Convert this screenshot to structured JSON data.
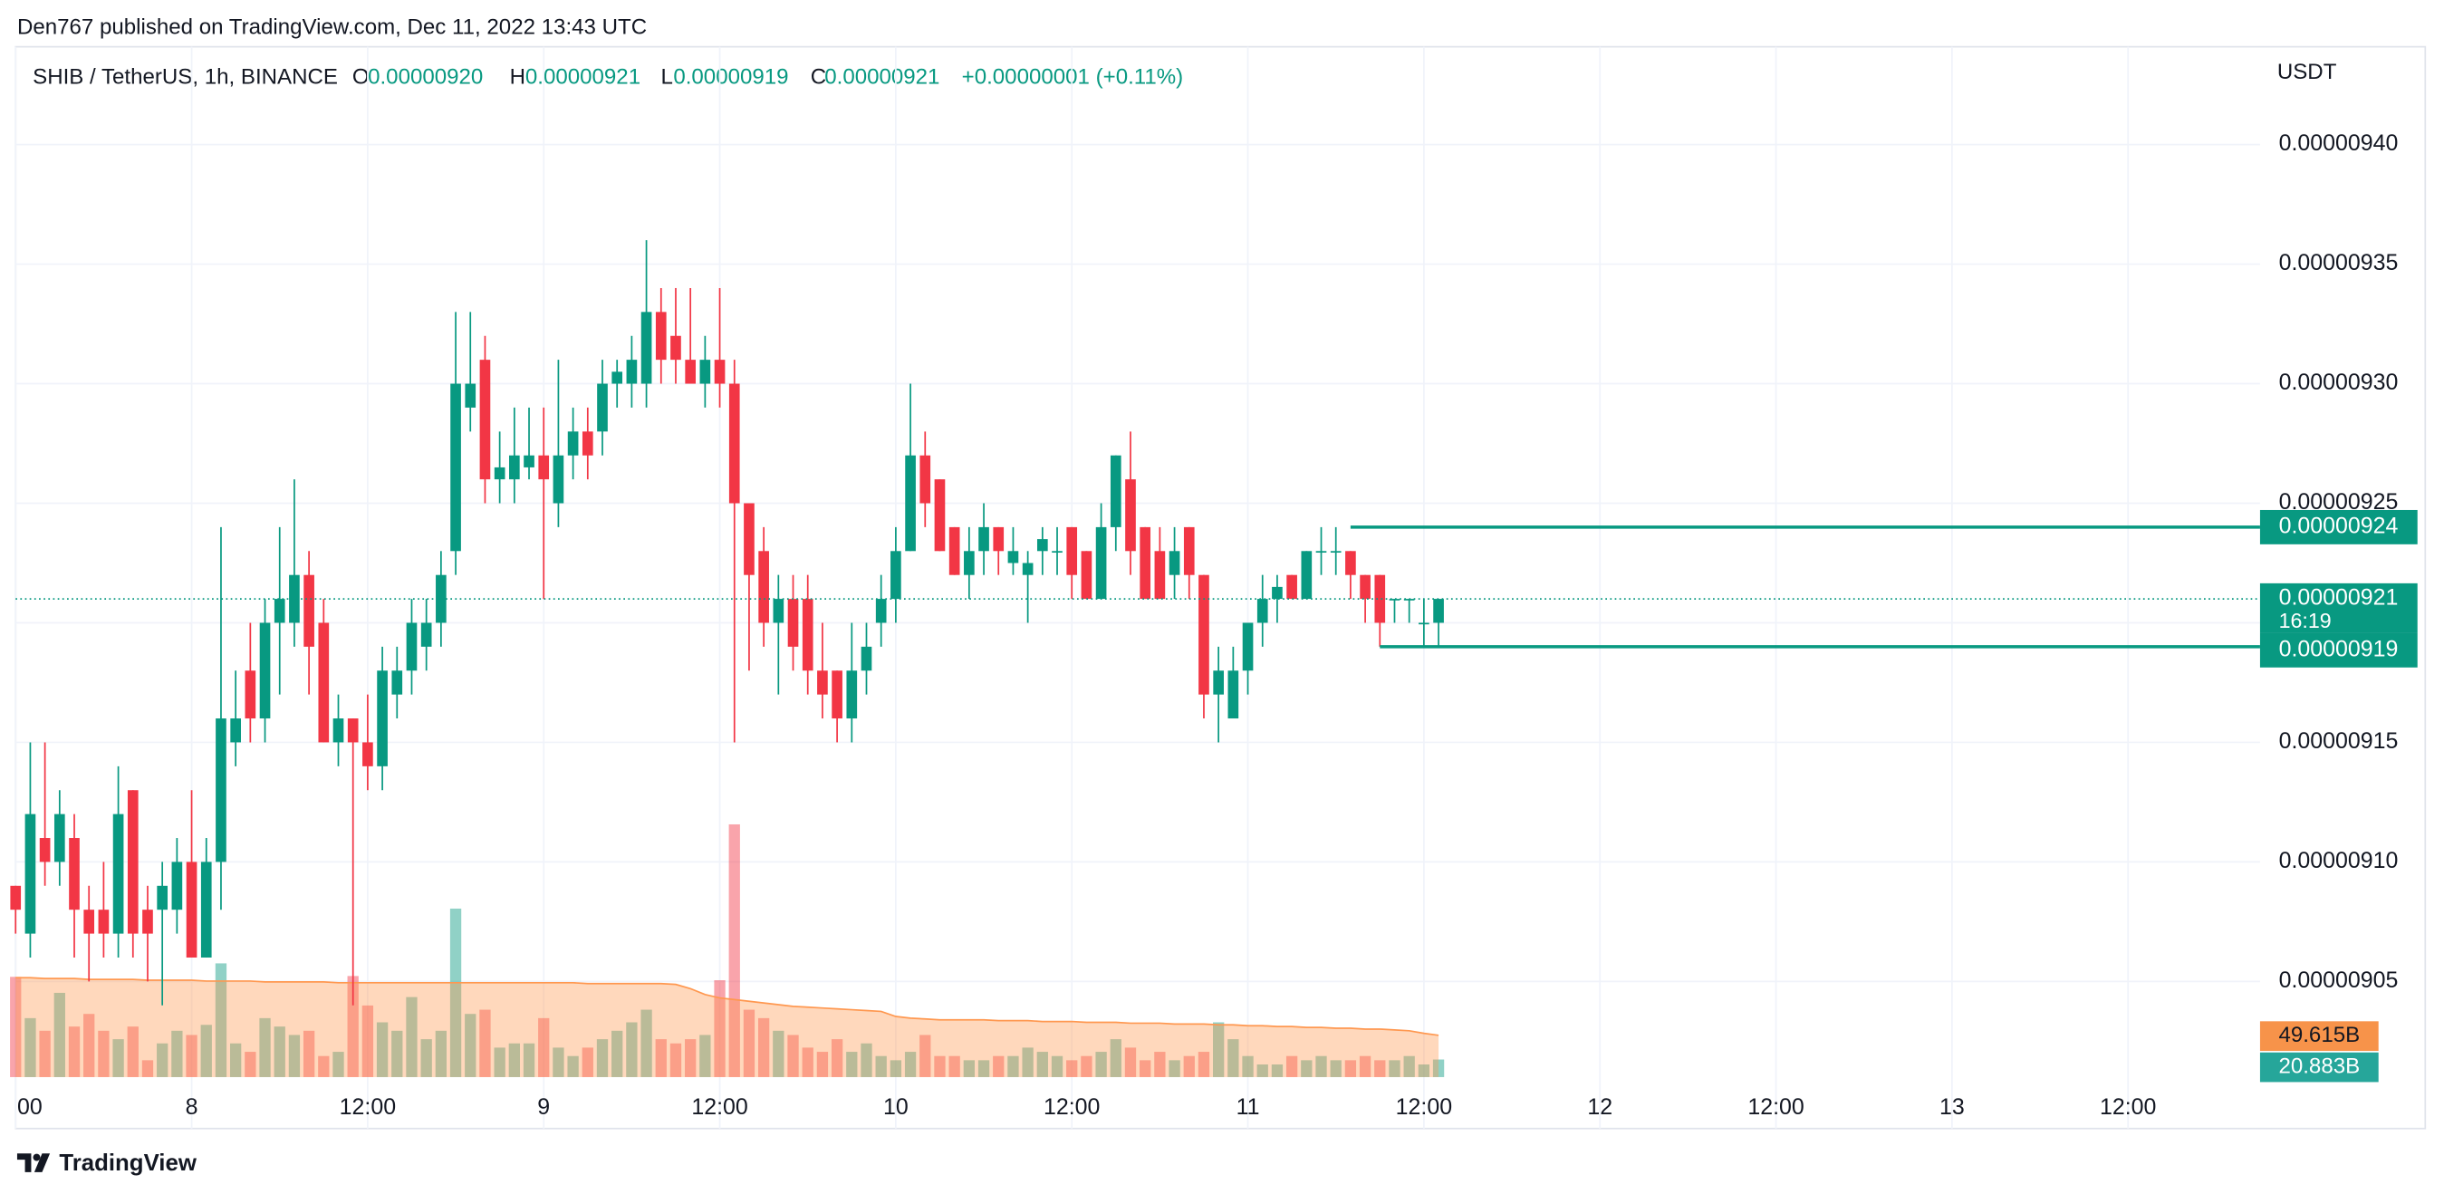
{
  "header": {
    "published": "Den767 published on TradingView.com, Dec 11, 2022 13:43 UTC",
    "brand": "TradingView"
  },
  "legend": {
    "symbol": "SHIB / TetherUS, 1h, BINANCE",
    "o": "O",
    "open": "0.00000920",
    "h": "H",
    "high": "0.00000921",
    "l": "L",
    "low": "0.00000919",
    "c": "C",
    "close": "0.00000921",
    "change": "+0.00000001 (+0.11%)"
  },
  "chart_data": {
    "type": "candlestick",
    "currency": "USDT",
    "up_color": "#089981",
    "down_color": "#f23645",
    "ma_color": "#ff9850",
    "grid": true,
    "xlim": [
      "2022-12-07 12:00",
      "2022-12-13 21:00"
    ],
    "xticks": [
      {
        "value": "2022-12-07 12:00",
        "label": "00"
      },
      {
        "value": "2022-12-08 00:00",
        "label": "8"
      },
      {
        "value": "2022-12-08 12:00",
        "label": "12:00"
      },
      {
        "value": "2022-12-09 00:00",
        "label": "9"
      },
      {
        "value": "2022-12-09 12:00",
        "label": "12:00"
      },
      {
        "value": "2022-12-10 00:00",
        "label": "10"
      },
      {
        "value": "2022-12-10 12:00",
        "label": "12:00"
      },
      {
        "value": "2022-12-11 00:00",
        "label": "11"
      },
      {
        "value": "2022-12-11 12:00",
        "label": "12:00"
      },
      {
        "value": "2022-12-12 00:00",
        "label": "12"
      },
      {
        "value": "2022-12-12 12:00",
        "label": "12:00"
      },
      {
        "value": "2022-12-13 00:00",
        "label": "13"
      },
      {
        "value": "2022-12-13 12:00",
        "label": "12:00"
      }
    ],
    "ylim": [
      9.01e-06,
      9.437e-06
    ],
    "yticks": [
      {
        "value": 9.4e-06,
        "label": "0.00000940"
      },
      {
        "value": 9.35e-06,
        "label": "0.00000935"
      },
      {
        "value": 9.3e-06,
        "label": "0.00000930"
      },
      {
        "value": 9.25e-06,
        "label": "0.00000925"
      },
      {
        "value": 9.2e-06,
        "label": "0.00000920"
      },
      {
        "value": 9.15e-06,
        "label": "0.00000915"
      },
      {
        "value": 9.1e-06,
        "label": "0.00000910"
      },
      {
        "value": 9.05e-06,
        "label": "0.00000905"
      }
    ],
    "x": [
      "2022-12-07 12:00",
      "2022-12-07 13:00",
      "2022-12-07 14:00",
      "2022-12-07 15:00",
      "2022-12-07 16:00",
      "2022-12-07 17:00",
      "2022-12-07 18:00",
      "2022-12-07 19:00",
      "2022-12-07 20:00",
      "2022-12-07 21:00",
      "2022-12-07 22:00",
      "2022-12-07 23:00",
      "2022-12-08 00:00",
      "2022-12-08 01:00",
      "2022-12-08 02:00",
      "2022-12-08 03:00",
      "2022-12-08 04:00",
      "2022-12-08 05:00",
      "2022-12-08 06:00",
      "2022-12-08 07:00",
      "2022-12-08 08:00",
      "2022-12-08 09:00",
      "2022-12-08 10:00",
      "2022-12-08 11:00",
      "2022-12-08 12:00",
      "2022-12-08 13:00",
      "2022-12-08 14:00",
      "2022-12-08 15:00",
      "2022-12-08 16:00",
      "2022-12-08 17:00",
      "2022-12-08 18:00",
      "2022-12-08 19:00",
      "2022-12-08 20:00",
      "2022-12-08 21:00",
      "2022-12-08 22:00",
      "2022-12-08 23:00",
      "2022-12-09 00:00",
      "2022-12-09 01:00",
      "2022-12-09 02:00",
      "2022-12-09 03:00",
      "2022-12-09 04:00",
      "2022-12-09 05:00",
      "2022-12-09 06:00",
      "2022-12-09 07:00",
      "2022-12-09 08:00",
      "2022-12-09 09:00",
      "2022-12-09 10:00",
      "2022-12-09 11:00",
      "2022-12-09 12:00",
      "2022-12-09 13:00",
      "2022-12-09 14:00",
      "2022-12-09 15:00",
      "2022-12-09 16:00",
      "2022-12-09 17:00",
      "2022-12-09 18:00",
      "2022-12-09 19:00",
      "2022-12-09 20:00",
      "2022-12-09 21:00",
      "2022-12-09 22:00",
      "2022-12-09 23:00",
      "2022-12-10 00:00",
      "2022-12-10 01:00",
      "2022-12-10 02:00",
      "2022-12-10 03:00",
      "2022-12-10 04:00",
      "2022-12-10 05:00",
      "2022-12-10 06:00",
      "2022-12-10 07:00",
      "2022-12-10 08:00",
      "2022-12-10 09:00",
      "2022-12-10 10:00",
      "2022-12-10 11:00",
      "2022-12-10 12:00",
      "2022-12-10 13:00",
      "2022-12-10 14:00",
      "2022-12-10 15:00",
      "2022-12-10 16:00",
      "2022-12-10 17:00",
      "2022-12-10 18:00",
      "2022-12-10 19:00",
      "2022-12-10 20:00",
      "2022-12-10 21:00",
      "2022-12-10 22:00",
      "2022-12-10 23:00",
      "2022-12-11 00:00",
      "2022-12-11 01:00",
      "2022-12-11 02:00",
      "2022-12-11 03:00",
      "2022-12-11 04:00",
      "2022-12-11 05:00",
      "2022-12-11 06:00",
      "2022-12-11 07:00",
      "2022-12-11 08:00",
      "2022-12-11 09:00",
      "2022-12-11 10:00",
      "2022-12-11 11:00",
      "2022-12-11 12:00",
      "2022-12-11 13:00"
    ],
    "open": [
      9.09e-06,
      9.07e-06,
      9.11e-06,
      9.1e-06,
      9.11e-06,
      9.08e-06,
      9.08e-06,
      9.07e-06,
      9.13e-06,
      9.08e-06,
      9.08e-06,
      9.08e-06,
      9.1e-06,
      9.06e-06,
      9.1e-06,
      9.15e-06,
      9.18e-06,
      9.16e-06,
      9.2e-06,
      9.2e-06,
      9.22e-06,
      9.2e-06,
      9.15e-06,
      9.16e-06,
      9.15e-06,
      9.14e-06,
      9.17e-06,
      9.18e-06,
      9.19e-06,
      9.2e-06,
      9.23e-06,
      9.29e-06,
      9.31e-06,
      9.26e-06,
      9.26e-06,
      9.265e-06,
      9.27e-06,
      9.25e-06,
      9.27e-06,
      9.28e-06,
      9.28e-06,
      9.3e-06,
      9.3e-06,
      9.3e-06,
      9.33e-06,
      9.32e-06,
      9.31e-06,
      9.3e-06,
      9.31e-06,
      9.3e-06,
      9.25e-06,
      9.23e-06,
      9.2e-06,
      9.21e-06,
      9.21e-06,
      9.18e-06,
      9.18e-06,
      9.16e-06,
      9.18e-06,
      9.2e-06,
      9.21e-06,
      9.23e-06,
      9.27e-06,
      9.26e-06,
      9.24e-06,
      9.22e-06,
      9.23e-06,
      9.24e-06,
      9.225e-06,
      9.22e-06,
      9.23e-06,
      9.23e-06,
      9.24e-06,
      9.23e-06,
      9.21e-06,
      9.24e-06,
      9.26e-06,
      9.24e-06,
      9.23e-06,
      9.22e-06,
      9.24e-06,
      9.22e-06,
      9.17e-06,
      9.16e-06,
      9.18e-06,
      9.2e-06,
      9.21e-06,
      9.22e-06,
      9.21e-06,
      9.23e-06,
      9.23e-06,
      9.23e-06,
      9.22e-06,
      9.22e-06,
      9.21e-06,
      9.21e-06,
      9.2e-06,
      9.2e-06
    ],
    "high": [
      9.09e-06,
      9.15e-06,
      9.15e-06,
      9.13e-06,
      9.12e-06,
      9.09e-06,
      9.1e-06,
      9.14e-06,
      9.13e-06,
      9.09e-06,
      9.1e-06,
      9.11e-06,
      9.13e-06,
      9.11e-06,
      9.24e-06,
      9.18e-06,
      9.2e-06,
      9.21e-06,
      9.24e-06,
      9.26e-06,
      9.23e-06,
      9.21e-06,
      9.17e-06,
      9.16e-06,
      9.17e-06,
      9.19e-06,
      9.19e-06,
      9.21e-06,
      9.21e-06,
      9.23e-06,
      9.33e-06,
      9.33e-06,
      9.32e-06,
      9.28e-06,
      9.29e-06,
      9.29e-06,
      9.29e-06,
      9.31e-06,
      9.29e-06,
      9.29e-06,
      9.31e-06,
      9.31e-06,
      9.32e-06,
      9.36e-06,
      9.34e-06,
      9.34e-06,
      9.34e-06,
      9.32e-06,
      9.34e-06,
      9.31e-06,
      9.25e-06,
      9.24e-06,
      9.22e-06,
      9.22e-06,
      9.22e-06,
      9.2e-06,
      9.18e-06,
      9.2e-06,
      9.2e-06,
      9.22e-06,
      9.24e-06,
      9.3e-06,
      9.28e-06,
      9.26e-06,
      9.24e-06,
      9.24e-06,
      9.25e-06,
      9.24e-06,
      9.24e-06,
      9.23e-06,
      9.24e-06,
      9.24e-06,
      9.24e-06,
      9.23e-06,
      9.25e-06,
      9.27e-06,
      9.28e-06,
      9.24e-06,
      9.24e-06,
      9.24e-06,
      9.24e-06,
      9.22e-06,
      9.19e-06,
      9.19e-06,
      9.2e-06,
      9.22e-06,
      9.22e-06,
      9.22e-06,
      9.23e-06,
      9.24e-06,
      9.24e-06,
      9.23e-06,
      9.22e-06,
      9.22e-06,
      9.21e-06,
      9.21e-06,
      9.21e-06,
      9.21e-06
    ],
    "low": [
      9.07e-06,
      9.06e-06,
      9.09e-06,
      9.09e-06,
      9.06e-06,
      9.05e-06,
      9.06e-06,
      9.06e-06,
      9.06e-06,
      9.05e-06,
      9.04e-06,
      9.07e-06,
      9.06e-06,
      9.06e-06,
      9.08e-06,
      9.14e-06,
      9.15e-06,
      9.15e-06,
      9.17e-06,
      9.19e-06,
      9.17e-06,
      9.15e-06,
      9.14e-06,
      9.04e-06,
      9.13e-06,
      9.13e-06,
      9.16e-06,
      9.17e-06,
      9.18e-06,
      9.19e-06,
      9.22e-06,
      9.28e-06,
      9.25e-06,
      9.25e-06,
      9.25e-06,
      9.26e-06,
      9.21e-06,
      9.24e-06,
      9.26e-06,
      9.26e-06,
      9.27e-06,
      9.29e-06,
      9.29e-06,
      9.29e-06,
      9.3e-06,
      9.3e-06,
      9.3e-06,
      9.29e-06,
      9.29e-06,
      9.15e-06,
      9.18e-06,
      9.19e-06,
      9.17e-06,
      9.18e-06,
      9.17e-06,
      9.16e-06,
      9.15e-06,
      9.15e-06,
      9.17e-06,
      9.19e-06,
      9.2e-06,
      9.23e-06,
      9.24e-06,
      9.23e-06,
      9.22e-06,
      9.21e-06,
      9.22e-06,
      9.22e-06,
      9.22e-06,
      9.2e-06,
      9.22e-06,
      9.22e-06,
      9.21e-06,
      9.21e-06,
      9.21e-06,
      9.23e-06,
      9.22e-06,
      9.21e-06,
      9.21e-06,
      9.21e-06,
      9.21e-06,
      9.16e-06,
      9.15e-06,
      9.16e-06,
      9.17e-06,
      9.19e-06,
      9.2e-06,
      9.21e-06,
      9.21e-06,
      9.22e-06,
      9.22e-06,
      9.21e-06,
      9.2e-06,
      9.19e-06,
      9.2e-06,
      9.2e-06,
      9.19e-06,
      9.19e-06
    ],
    "close": [
      9.08e-06,
      9.12e-06,
      9.1e-06,
      9.12e-06,
      9.08e-06,
      9.07e-06,
      9.07e-06,
      9.12e-06,
      9.07e-06,
      9.07e-06,
      9.09e-06,
      9.1e-06,
      9.06e-06,
      9.1e-06,
      9.16e-06,
      9.16e-06,
      9.16e-06,
      9.2e-06,
      9.21e-06,
      9.22e-06,
      9.19e-06,
      9.15e-06,
      9.16e-06,
      9.15e-06,
      9.14e-06,
      9.18e-06,
      9.18e-06,
      9.2e-06,
      9.2e-06,
      9.22e-06,
      9.3e-06,
      9.3e-06,
      9.26e-06,
      9.265e-06,
      9.27e-06,
      9.27e-06,
      9.26e-06,
      9.27e-06,
      9.28e-06,
      9.27e-06,
      9.3e-06,
      9.305e-06,
      9.31e-06,
      9.33e-06,
      9.31e-06,
      9.31e-06,
      9.3e-06,
      9.31e-06,
      9.3e-06,
      9.25e-06,
      9.22e-06,
      9.2e-06,
      9.21e-06,
      9.19e-06,
      9.18e-06,
      9.17e-06,
      9.16e-06,
      9.18e-06,
      9.19e-06,
      9.21e-06,
      9.23e-06,
      9.27e-06,
      9.25e-06,
      9.23e-06,
      9.22e-06,
      9.23e-06,
      9.24e-06,
      9.23e-06,
      9.23e-06,
      9.225e-06,
      9.235e-06,
      9.23e-06,
      9.22e-06,
      9.21e-06,
      9.24e-06,
      9.27e-06,
      9.23e-06,
      9.21e-06,
      9.21e-06,
      9.23e-06,
      9.22e-06,
      9.17e-06,
      9.18e-06,
      9.18e-06,
      9.2e-06,
      9.21e-06,
      9.215e-06,
      9.21e-06,
      9.23e-06,
      9.23e-06,
      9.23e-06,
      9.22e-06,
      9.21e-06,
      9.2e-06,
      9.21e-06,
      9.21e-06,
      9.2e-06,
      9.21e-06
    ],
    "volume_lim": [
      0,
      1212
    ],
    "volume": [
      119,
      70,
      55,
      100,
      60,
      75,
      55,
      45,
      60,
      20,
      40,
      55,
      50,
      62,
      135,
      40,
      30,
      70,
      60,
      50,
      55,
      25,
      30,
      120,
      85,
      65,
      55,
      95,
      45,
      55,
      200,
      75,
      80,
      35,
      40,
      40,
      70,
      35,
      25,
      35,
      45,
      55,
      65,
      80,
      45,
      40,
      45,
      50,
      115,
      300,
      80,
      70,
      55,
      50,
      35,
      30,
      45,
      30,
      40,
      25,
      20,
      30,
      50,
      25,
      25,
      20,
      20,
      25,
      25,
      35,
      30,
      25,
      20,
      25,
      30,
      45,
      35,
      20,
      30,
      20,
      25,
      30,
      65,
      45,
      25,
      15,
      15,
      25,
      20,
      25,
      20,
      20,
      25,
      20,
      20,
      25,
      15,
      20.883
    ],
    "volume_ma": [
      118,
      118,
      117,
      117,
      117,
      116,
      116,
      116,
      116,
      115,
      115,
      115,
      115,
      114,
      114,
      114,
      114,
      113,
      113,
      113,
      113,
      113,
      112,
      112,
      112,
      112,
      112,
      112,
      112,
      112,
      112,
      112,
      112,
      112,
      112,
      112,
      112,
      112,
      112,
      111,
      111,
      111,
      111,
      111,
      111,
      110,
      105,
      98,
      94,
      92,
      90,
      88,
      86,
      84,
      83,
      82,
      81,
      80,
      79,
      78,
      72,
      70,
      69,
      68,
      68,
      68,
      68,
      67,
      67,
      67,
      66,
      66,
      66,
      65,
      65,
      65,
      64,
      64,
      64,
      63,
      63,
      63,
      62,
      62,
      61,
      61,
      60,
      60,
      59,
      59,
      58,
      58,
      57,
      57,
      56,
      55,
      52,
      49.615
    ],
    "volume_ma_label": "49.615B",
    "volume_label": "20.883B",
    "levels": [
      {
        "value": 9.24e-06,
        "label": "0.00000924",
        "start": "2022-12-11 07:00"
      },
      {
        "value": 9.19e-06,
        "label": "0.00000919",
        "start": "2022-12-11 09:00"
      }
    ],
    "last_price": {
      "value": 9.21e-06,
      "label": "0.00000921",
      "countdown": "16:19"
    }
  }
}
